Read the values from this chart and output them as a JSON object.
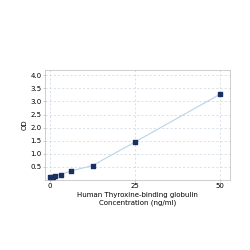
{
  "x": [
    0,
    0.78,
    1.563,
    3.125,
    6.25,
    12.5,
    25,
    50
  ],
  "y": [
    0.1,
    0.13,
    0.16,
    0.21,
    0.35,
    0.55,
    1.45,
    3.27
  ],
  "line_color": "#b8d4e8",
  "marker_color": "#1a3060",
  "marker_size": 3,
  "xlabel_line1": "Human Thyroxine-binding globulin",
  "xlabel_line2": "Concentration (ng/ml)",
  "ylabel": "OD",
  "xlim": [
    -1.5,
    53
  ],
  "ylim": [
    0,
    4.2
  ],
  "xticks": [
    0,
    25,
    50
  ],
  "yticks": [
    0.5,
    1,
    1.5,
    2,
    2.5,
    3,
    3.5,
    4
  ],
  "grid_color": "#c8d4e0",
  "background_color": "#ffffff",
  "tick_label_fontsize": 5,
  "axis_label_fontsize": 5,
  "line_width": 0.8
}
